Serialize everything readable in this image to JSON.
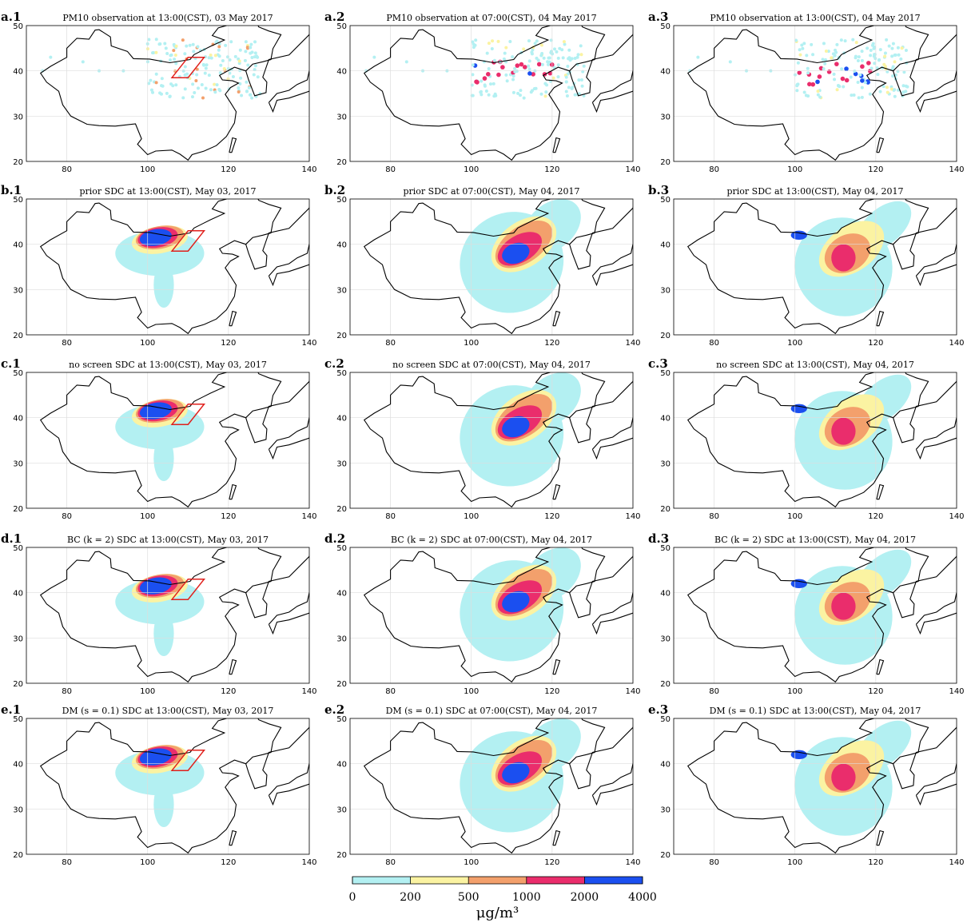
{
  "panels": [
    {
      "label": "a.1",
      "title": "PM10 observation at 13:00(CST), 03 May 2017"
    },
    {
      "label": "a.2",
      "title": "PM10 observation at 07:00(CST), 04 May 2017"
    },
    {
      "label": "a.3",
      "title": "PM10 observation at 13:00(CST), 04 May 2017"
    },
    {
      "label": "b.1",
      "title": "prior SDC at 13:00(CST), May 03, 2017"
    },
    {
      "label": "b.2",
      "title": "prior SDC at 07:00(CST), May 04, 2017"
    },
    {
      "label": "b.3",
      "title": "prior SDC at 13:00(CST), May 04, 2017"
    },
    {
      "label": "c.1",
      "title": "no screen SDC at 13:00(CST), May 03, 2017"
    },
    {
      "label": "c.2",
      "title": "no screen SDC at 07:00(CST), May 04, 2017"
    },
    {
      "label": "c.3",
      "title": "no screen SDC at 13:00(CST), May 04, 2017"
    },
    {
      "label": "d.1",
      "title": "BC (k = 2) SDC at 13:00(CST), May 03, 2017"
    },
    {
      "label": "d.2",
      "title": "BC (k = 2) SDC at 07:00(CST), May 04, 2017"
    },
    {
      "label": "d.3",
      "title": "BC (k = 2) SDC at 13:00(CST), May 04, 2017"
    },
    {
      "label": "e.1",
      "title": "DM (s = 0.1) SDC at 13:00(CST), May 03, 2017"
    },
    {
      "label": "e.2",
      "title": "DM (s = 0.1) SDC at 07:00(CST), May 04, 2017"
    },
    {
      "label": "e.3",
      "title": "DM (s = 0.1) SDC at 13:00(CST), May 04, 2017"
    }
  ],
  "axes": {
    "xlim": [
      70,
      140
    ],
    "ylim": [
      20,
      50
    ],
    "xticks": [
      80,
      100,
      120,
      140
    ],
    "yticks": [
      20,
      30,
      40,
      50
    ]
  },
  "colorbar": {
    "ticks": [
      0,
      200,
      500,
      1000,
      2000,
      4000
    ],
    "colors": [
      "#b3f0f2",
      "#fbf3a2",
      "#f3a06c",
      "#ea2d6c",
      "#1b4ff0"
    ],
    "unit": "μg/m³"
  }
}
